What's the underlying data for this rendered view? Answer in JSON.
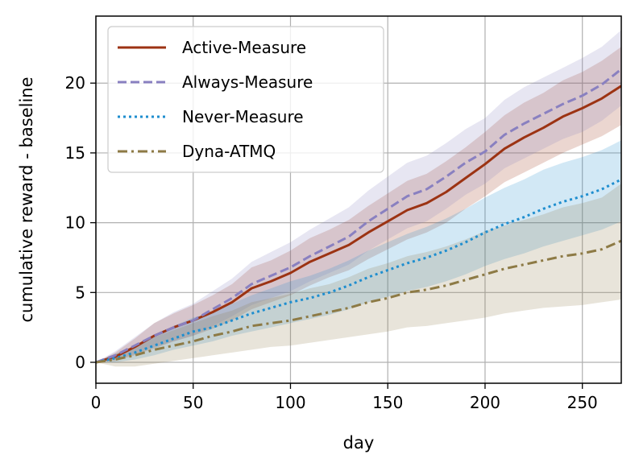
{
  "chart_data": {
    "type": "line",
    "title": "",
    "xlabel": "day",
    "ylabel": "cumulative reward - baseline",
    "xlim": [
      0,
      270
    ],
    "ylim": [
      -1.5,
      24.8
    ],
    "xticks": [
      0,
      50,
      100,
      150,
      200,
      250
    ],
    "yticks": [
      0,
      5,
      10,
      15,
      20
    ],
    "grid": true,
    "legend_position": "top-left",
    "series": [
      {
        "name": "Active-Measure",
        "color": "#9c3313",
        "style": "solid",
        "x": [
          0,
          10,
          20,
          30,
          40,
          50,
          60,
          70,
          80,
          90,
          100,
          110,
          120,
          130,
          140,
          150,
          160,
          170,
          180,
          190,
          200,
          210,
          220,
          230,
          240,
          250,
          260,
          270
        ],
        "y": [
          0,
          0.4,
          1.1,
          1.9,
          2.5,
          3.0,
          3.6,
          4.3,
          5.3,
          5.8,
          6.4,
          7.2,
          7.8,
          8.4,
          9.3,
          10.1,
          10.9,
          11.4,
          12.2,
          13.2,
          14.2,
          15.3,
          16.1,
          16.8,
          17.6,
          18.2,
          18.9,
          19.8
        ],
        "lower": [
          0,
          0.1,
          0.5,
          1.0,
          1.5,
          1.9,
          2.4,
          3.0,
          3.8,
          4.3,
          4.8,
          5.5,
          6.1,
          6.6,
          7.4,
          8.1,
          8.8,
          9.3,
          10.0,
          11.0,
          11.9,
          12.9,
          13.6,
          14.3,
          15.0,
          15.6,
          16.2,
          17.0
        ],
        "upper": [
          0,
          0.7,
          1.7,
          2.8,
          3.5,
          4.1,
          4.8,
          5.6,
          6.8,
          7.3,
          8.0,
          8.9,
          9.5,
          10.2,
          11.2,
          12.1,
          13.0,
          13.5,
          14.4,
          15.4,
          16.5,
          17.7,
          18.6,
          19.3,
          20.2,
          20.8,
          21.6,
          22.6
        ]
      },
      {
        "name": "Always-Measure",
        "color": "#8980c0",
        "style": "dashed",
        "x": [
          0,
          10,
          20,
          30,
          40,
          50,
          60,
          70,
          80,
          90,
          100,
          110,
          120,
          130,
          140,
          150,
          160,
          170,
          180,
          190,
          200,
          210,
          220,
          230,
          240,
          250,
          260,
          270
        ],
        "y": [
          0,
          0.5,
          1.2,
          1.9,
          2.5,
          3.0,
          3.8,
          4.6,
          5.6,
          6.2,
          6.8,
          7.6,
          8.3,
          9.0,
          10.1,
          11.0,
          11.9,
          12.4,
          13.3,
          14.3,
          15.1,
          16.3,
          17.1,
          17.8,
          18.5,
          19.1,
          19.9,
          21.0
        ],
        "lower": [
          0,
          0.2,
          0.6,
          1.1,
          1.5,
          1.9,
          2.6,
          3.3,
          4.1,
          4.6,
          5.1,
          5.8,
          6.4,
          7.0,
          8.0,
          8.8,
          9.6,
          10.1,
          11.0,
          12.0,
          12.8,
          13.9,
          14.6,
          15.3,
          16.0,
          16.5,
          17.3,
          18.4
        ],
        "upper": [
          0,
          0.8,
          1.8,
          2.8,
          3.6,
          4.2,
          5.1,
          6.0,
          7.2,
          7.9,
          8.6,
          9.5,
          10.3,
          11.1,
          12.3,
          13.3,
          14.3,
          14.8,
          15.7,
          16.7,
          17.5,
          18.8,
          19.7,
          20.4,
          21.1,
          21.8,
          22.6,
          23.8
        ]
      },
      {
        "name": "Never-Measure",
        "color": "#1f8ecf",
        "style": "dotted",
        "x": [
          0,
          10,
          20,
          30,
          40,
          50,
          60,
          70,
          80,
          90,
          100,
          110,
          120,
          130,
          140,
          150,
          160,
          170,
          180,
          190,
          200,
          210,
          220,
          230,
          240,
          250,
          260,
          270
        ],
        "y": [
          0,
          0.3,
          0.7,
          1.2,
          1.7,
          2.2,
          2.5,
          3.0,
          3.5,
          3.9,
          4.3,
          4.6,
          5.0,
          5.5,
          6.1,
          6.6,
          7.1,
          7.5,
          8.0,
          8.6,
          9.3,
          9.9,
          10.4,
          11.0,
          11.5,
          11.9,
          12.4,
          13.1
        ],
        "lower": [
          0,
          0.0,
          0.2,
          0.5,
          0.9,
          1.2,
          1.5,
          1.9,
          2.2,
          2.5,
          2.8,
          3.1,
          3.4,
          3.8,
          4.3,
          4.7,
          5.1,
          5.4,
          5.8,
          6.3,
          6.9,
          7.4,
          7.8,
          8.3,
          8.7,
          9.1,
          9.5,
          10.1
        ],
        "upper": [
          0,
          0.6,
          1.2,
          1.9,
          2.6,
          3.2,
          3.6,
          4.2,
          4.8,
          5.3,
          5.8,
          6.2,
          6.7,
          7.3,
          8.0,
          8.6,
          9.2,
          9.7,
          10.3,
          11.0,
          11.8,
          12.5,
          13.1,
          13.8,
          14.3,
          14.7,
          15.2,
          15.9
        ]
      },
      {
        "name": "Dyna-ATMQ",
        "color": "#8d7a45",
        "style": "dashdot",
        "x": [
          0,
          10,
          20,
          30,
          40,
          50,
          60,
          70,
          80,
          90,
          100,
          110,
          120,
          130,
          140,
          150,
          160,
          170,
          180,
          190,
          200,
          210,
          220,
          230,
          240,
          250,
          260,
          270
        ],
        "y": [
          0,
          0.2,
          0.5,
          0.9,
          1.2,
          1.5,
          1.9,
          2.2,
          2.6,
          2.8,
          3.0,
          3.3,
          3.6,
          3.9,
          4.3,
          4.6,
          5.0,
          5.2,
          5.5,
          5.9,
          6.3,
          6.7,
          7.0,
          7.3,
          7.6,
          7.8,
          8.1,
          8.7
        ],
        "lower": [
          0,
          -0.3,
          -0.3,
          -0.1,
          0.1,
          0.3,
          0.5,
          0.7,
          0.9,
          1.1,
          1.2,
          1.4,
          1.6,
          1.8,
          2.0,
          2.2,
          2.5,
          2.6,
          2.8,
          3.0,
          3.2,
          3.5,
          3.7,
          3.9,
          4.0,
          4.1,
          4.3,
          4.5
        ],
        "upper": [
          0,
          0.6,
          1.2,
          1.8,
          2.3,
          2.8,
          3.3,
          3.7,
          4.3,
          4.6,
          4.9,
          5.3,
          5.6,
          6.1,
          6.7,
          7.1,
          7.6,
          7.9,
          8.3,
          8.8,
          9.4,
          9.8,
          10.2,
          10.6,
          11.1,
          11.4,
          11.8,
          12.8
        ]
      }
    ]
  }
}
